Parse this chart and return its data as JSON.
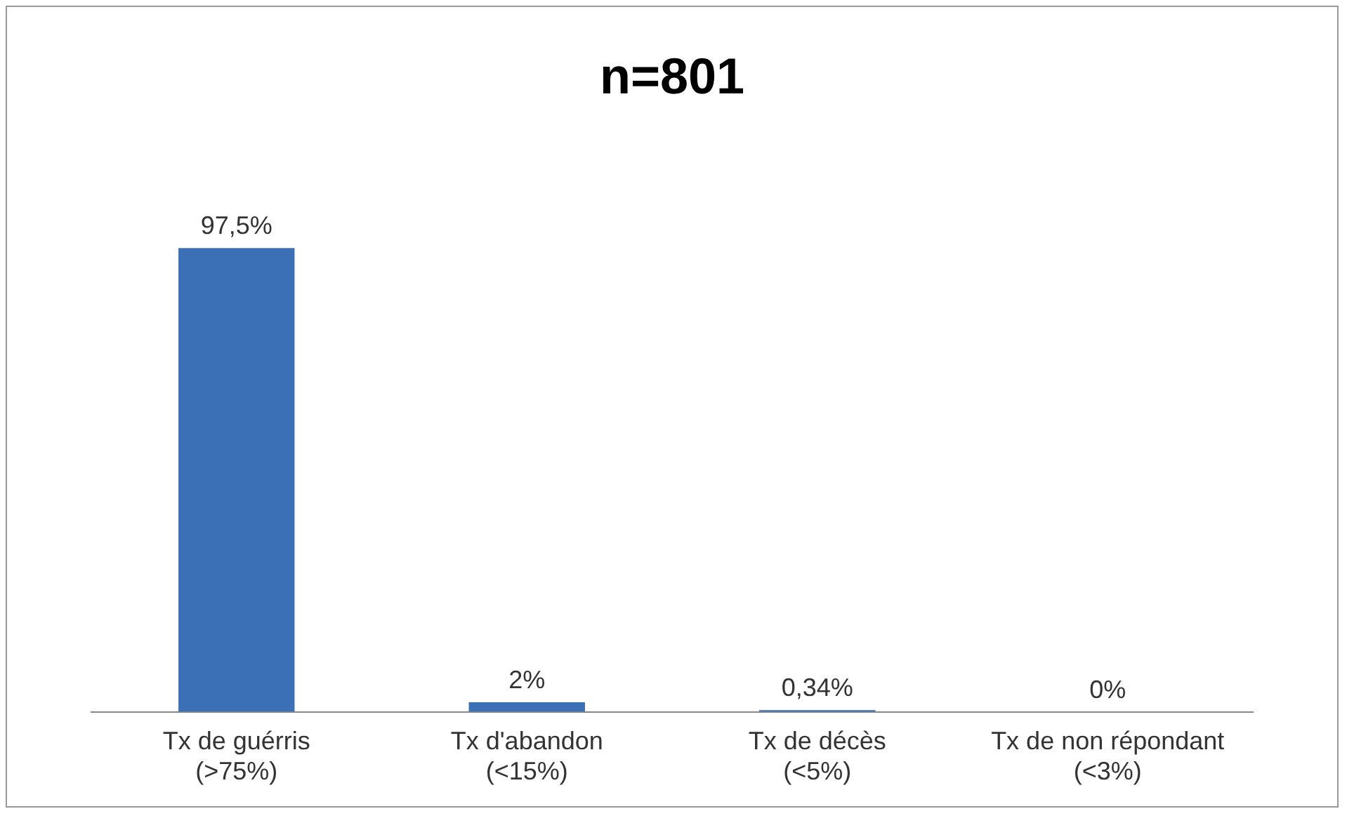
{
  "chart_data": {
    "type": "bar",
    "title": "n=801",
    "categories": [
      "Tx de guérris\n(>75%)",
      "Tx d'abandon\n(<15%)",
      "Tx de décès\n(<5%)",
      "Tx de non répondant\n(<3%)"
    ],
    "values": [
      97.5,
      2,
      0.34,
      0
    ],
    "value_labels": [
      "97,5%",
      "2%",
      "0,34%",
      "0%"
    ],
    "color": "#3b6fb6",
    "tick_labels": "x",
    "grid": false,
    "legend": false
  }
}
